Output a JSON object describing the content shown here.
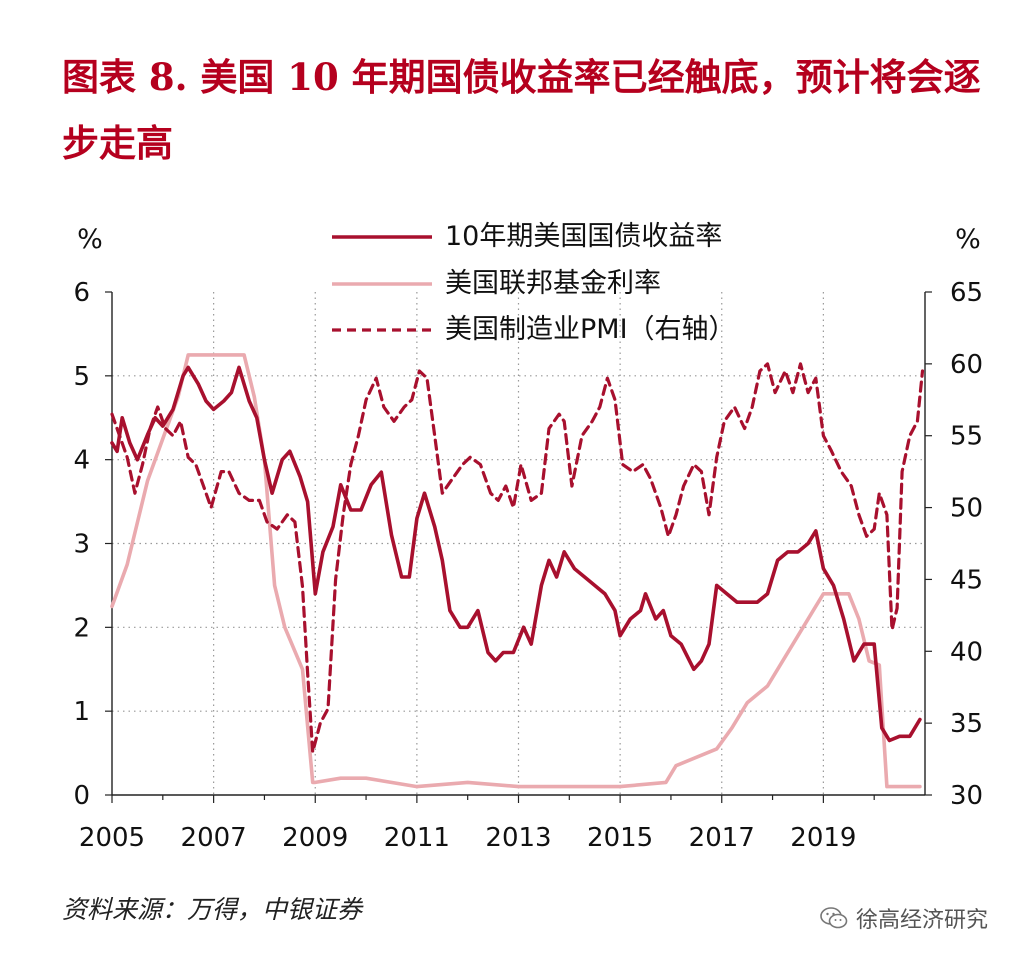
{
  "title": "图表 8.  美国 10 年期国债收益率已经触底，预计将会逐步走高",
  "source": "资料来源：万得，中银证券",
  "watermark": "徐高经济研究",
  "colors": {
    "yield": "#a8102e",
    "fed": "#eaaaaf",
    "pmi": "#a8102e",
    "title": "#b5001e"
  },
  "chart_data": {
    "type": "line",
    "title": "",
    "xlabel": "",
    "ylabel_left": "%",
    "ylabel_right": "%",
    "xlim": [
      2005,
      2021
    ],
    "xticks": [
      "2005",
      "2007",
      "2009",
      "2011",
      "2013",
      "2015",
      "2017",
      "2019"
    ],
    "ylim_left": [
      0,
      6
    ],
    "yticks_left": [
      "0",
      "1",
      "2",
      "3",
      "4",
      "5",
      "6"
    ],
    "ylim_right": [
      30,
      65
    ],
    "yticks_right": [
      "30",
      "35",
      "40",
      "45",
      "50",
      "55",
      "60",
      "65"
    ],
    "grid": true,
    "legend_position": "top-center",
    "series": [
      {
        "name": "10年期美国国债收益率",
        "axis": "left",
        "style": "solid",
        "points": [
          [
            2005.0,
            4.2
          ],
          [
            2005.1,
            4.1
          ],
          [
            2005.2,
            4.5
          ],
          [
            2005.35,
            4.2
          ],
          [
            2005.5,
            4.0
          ],
          [
            2005.7,
            4.3
          ],
          [
            2005.85,
            4.5
          ],
          [
            2006.0,
            4.4
          ],
          [
            2006.2,
            4.6
          ],
          [
            2006.4,
            5.0
          ],
          [
            2006.5,
            5.1
          ],
          [
            2006.7,
            4.9
          ],
          [
            2006.85,
            4.7
          ],
          [
            2007.0,
            4.6
          ],
          [
            2007.2,
            4.7
          ],
          [
            2007.35,
            4.8
          ],
          [
            2007.5,
            5.1
          ],
          [
            2007.7,
            4.7
          ],
          [
            2007.85,
            4.5
          ],
          [
            2008.0,
            4.0
          ],
          [
            2008.15,
            3.6
          ],
          [
            2008.35,
            4.0
          ],
          [
            2008.5,
            4.1
          ],
          [
            2008.7,
            3.8
          ],
          [
            2008.85,
            3.5
          ],
          [
            2009.0,
            2.4
          ],
          [
            2009.15,
            2.9
          ],
          [
            2009.35,
            3.2
          ],
          [
            2009.5,
            3.7
          ],
          [
            2009.7,
            3.4
          ],
          [
            2009.9,
            3.4
          ],
          [
            2010.1,
            3.7
          ],
          [
            2010.3,
            3.85
          ],
          [
            2010.5,
            3.1
          ],
          [
            2010.7,
            2.6
          ],
          [
            2010.85,
            2.6
          ],
          [
            2011.0,
            3.3
          ],
          [
            2011.15,
            3.6
          ],
          [
            2011.35,
            3.2
          ],
          [
            2011.5,
            2.8
          ],
          [
            2011.65,
            2.2
          ],
          [
            2011.85,
            2.0
          ],
          [
            2012.0,
            2.0
          ],
          [
            2012.2,
            2.2
          ],
          [
            2012.4,
            1.7
          ],
          [
            2012.55,
            1.6
          ],
          [
            2012.7,
            1.7
          ],
          [
            2012.9,
            1.7
          ],
          [
            2013.1,
            2.0
          ],
          [
            2013.25,
            1.8
          ],
          [
            2013.45,
            2.5
          ],
          [
            2013.6,
            2.8
          ],
          [
            2013.75,
            2.6
          ],
          [
            2013.9,
            2.9
          ],
          [
            2014.1,
            2.7
          ],
          [
            2014.3,
            2.6
          ],
          [
            2014.5,
            2.5
          ],
          [
            2014.7,
            2.4
          ],
          [
            2014.9,
            2.2
          ],
          [
            2015.0,
            1.9
          ],
          [
            2015.2,
            2.1
          ],
          [
            2015.4,
            2.2
          ],
          [
            2015.5,
            2.4
          ],
          [
            2015.7,
            2.1
          ],
          [
            2015.85,
            2.2
          ],
          [
            2016.0,
            1.9
          ],
          [
            2016.2,
            1.8
          ],
          [
            2016.45,
            1.5
          ],
          [
            2016.6,
            1.6
          ],
          [
            2016.75,
            1.8
          ],
          [
            2016.9,
            2.5
          ],
          [
            2017.1,
            2.4
          ],
          [
            2017.3,
            2.3
          ],
          [
            2017.5,
            2.3
          ],
          [
            2017.7,
            2.3
          ],
          [
            2017.9,
            2.4
          ],
          [
            2018.1,
            2.8
          ],
          [
            2018.3,
            2.9
          ],
          [
            2018.5,
            2.9
          ],
          [
            2018.7,
            3.0
          ],
          [
            2018.85,
            3.15
          ],
          [
            2019.0,
            2.7
          ],
          [
            2019.2,
            2.5
          ],
          [
            2019.4,
            2.1
          ],
          [
            2019.6,
            1.6
          ],
          [
            2019.8,
            1.8
          ],
          [
            2020.0,
            1.8
          ],
          [
            2020.15,
            0.8
          ],
          [
            2020.3,
            0.65
          ],
          [
            2020.5,
            0.7
          ],
          [
            2020.7,
            0.7
          ],
          [
            2020.9,
            0.9
          ]
        ]
      },
      {
        "name": "美国联邦基金利率",
        "axis": "left",
        "style": "solid",
        "points": [
          [
            2005.0,
            2.25
          ],
          [
            2005.3,
            2.75
          ],
          [
            2005.5,
            3.25
          ],
          [
            2005.7,
            3.75
          ],
          [
            2006.0,
            4.25
          ],
          [
            2006.3,
            4.75
          ],
          [
            2006.5,
            5.25
          ],
          [
            2007.0,
            5.25
          ],
          [
            2007.6,
            5.25
          ],
          [
            2007.8,
            4.75
          ],
          [
            2008.0,
            4.0
          ],
          [
            2008.2,
            2.5
          ],
          [
            2008.4,
            2.0
          ],
          [
            2008.75,
            1.5
          ],
          [
            2008.95,
            0.15
          ],
          [
            2009.0,
            0.15
          ],
          [
            2009.5,
            0.2
          ],
          [
            2010.0,
            0.2
          ],
          [
            2011.0,
            0.1
          ],
          [
            2012.0,
            0.15
          ],
          [
            2013.0,
            0.1
          ],
          [
            2014.0,
            0.1
          ],
          [
            2015.0,
            0.1
          ],
          [
            2015.9,
            0.15
          ],
          [
            2016.1,
            0.35
          ],
          [
            2016.9,
            0.55
          ],
          [
            2017.2,
            0.8
          ],
          [
            2017.5,
            1.1
          ],
          [
            2017.9,
            1.3
          ],
          [
            2018.2,
            1.6
          ],
          [
            2018.5,
            1.9
          ],
          [
            2018.8,
            2.2
          ],
          [
            2019.0,
            2.4
          ],
          [
            2019.5,
            2.4
          ],
          [
            2019.7,
            2.1
          ],
          [
            2019.9,
            1.6
          ],
          [
            2020.1,
            1.55
          ],
          [
            2020.25,
            0.1
          ],
          [
            2020.6,
            0.1
          ],
          [
            2020.9,
            0.1
          ]
        ]
      },
      {
        "name": "美国制造业PMI（右轴）",
        "axis": "right",
        "style": "dashed",
        "points": [
          [
            2005.0,
            56.5
          ],
          [
            2005.15,
            55.0
          ],
          [
            2005.3,
            53.5
          ],
          [
            2005.45,
            51.0
          ],
          [
            2005.6,
            53.0
          ],
          [
            2005.75,
            55.5
          ],
          [
            2005.9,
            57.0
          ],
          [
            2006.05,
            55.5
          ],
          [
            2006.2,
            55.0
          ],
          [
            2006.35,
            56.0
          ],
          [
            2006.5,
            53.5
          ],
          [
            2006.65,
            53.0
          ],
          [
            2006.8,
            51.5
          ],
          [
            2006.95,
            50.0
          ],
          [
            2007.15,
            52.5
          ],
          [
            2007.3,
            52.5
          ],
          [
            2007.5,
            51.0
          ],
          [
            2007.7,
            50.5
          ],
          [
            2007.9,
            50.5
          ],
          [
            2008.05,
            49.0
          ],
          [
            2008.25,
            48.5
          ],
          [
            2008.45,
            49.5
          ],
          [
            2008.6,
            49.0
          ],
          [
            2008.75,
            44.5
          ],
          [
            2008.85,
            38.5
          ],
          [
            2008.95,
            33.0
          ],
          [
            2009.1,
            35.0
          ],
          [
            2009.25,
            36.0
          ],
          [
            2009.4,
            45.0
          ],
          [
            2009.55,
            49.5
          ],
          [
            2009.7,
            53.0
          ],
          [
            2009.85,
            55.0
          ],
          [
            2010.0,
            57.5
          ],
          [
            2010.2,
            59.0
          ],
          [
            2010.35,
            57.0
          ],
          [
            2010.55,
            56.0
          ],
          [
            2010.75,
            57.0
          ],
          [
            2010.9,
            57.5
          ],
          [
            2011.05,
            59.5
          ],
          [
            2011.2,
            59.0
          ],
          [
            2011.35,
            55.0
          ],
          [
            2011.5,
            51.0
          ],
          [
            2011.7,
            52.0
          ],
          [
            2011.9,
            53.0
          ],
          [
            2012.05,
            53.5
          ],
          [
            2012.25,
            53.0
          ],
          [
            2012.45,
            51.0
          ],
          [
            2012.6,
            50.5
          ],
          [
            2012.75,
            51.5
          ],
          [
            2012.9,
            50.0
          ],
          [
            2013.05,
            53.0
          ],
          [
            2013.25,
            50.5
          ],
          [
            2013.45,
            51.0
          ],
          [
            2013.6,
            55.5
          ],
          [
            2013.8,
            56.5
          ],
          [
            2013.9,
            56.0
          ],
          [
            2014.05,
            51.5
          ],
          [
            2014.25,
            55.0
          ],
          [
            2014.45,
            56.0
          ],
          [
            2014.6,
            57.0
          ],
          [
            2014.75,
            59.0
          ],
          [
            2014.9,
            57.5
          ],
          [
            2015.05,
            53.0
          ],
          [
            2015.25,
            52.5
          ],
          [
            2015.45,
            53.0
          ],
          [
            2015.6,
            52.0
          ],
          [
            2015.8,
            50.0
          ],
          [
            2015.95,
            48.0
          ],
          [
            2016.1,
            49.5
          ],
          [
            2016.25,
            51.5
          ],
          [
            2016.45,
            53.0
          ],
          [
            2016.6,
            52.5
          ],
          [
            2016.75,
            49.5
          ],
          [
            2016.9,
            53.5
          ],
          [
            2017.05,
            56.0
          ],
          [
            2017.25,
            57.0
          ],
          [
            2017.45,
            55.5
          ],
          [
            2017.6,
            57.0
          ],
          [
            2017.75,
            59.5
          ],
          [
            2017.9,
            60.0
          ],
          [
            2018.05,
            58.0
          ],
          [
            2018.25,
            59.5
          ],
          [
            2018.4,
            58.0
          ],
          [
            2018.55,
            60.0
          ],
          [
            2018.7,
            58.0
          ],
          [
            2018.85,
            59.0
          ],
          [
            2019.0,
            55.0
          ],
          [
            2019.15,
            54.0
          ],
          [
            2019.35,
            52.5
          ],
          [
            2019.55,
            51.5
          ],
          [
            2019.7,
            49.5
          ],
          [
            2019.85,
            48.0
          ],
          [
            2020.0,
            48.5
          ],
          [
            2020.1,
            51.0
          ],
          [
            2020.25,
            49.5
          ],
          [
            2020.35,
            41.5
          ],
          [
            2020.45,
            43.0
          ],
          [
            2020.55,
            52.5
          ],
          [
            2020.7,
            55.0
          ],
          [
            2020.85,
            56.0
          ],
          [
            2020.95,
            59.5
          ]
        ]
      }
    ]
  }
}
